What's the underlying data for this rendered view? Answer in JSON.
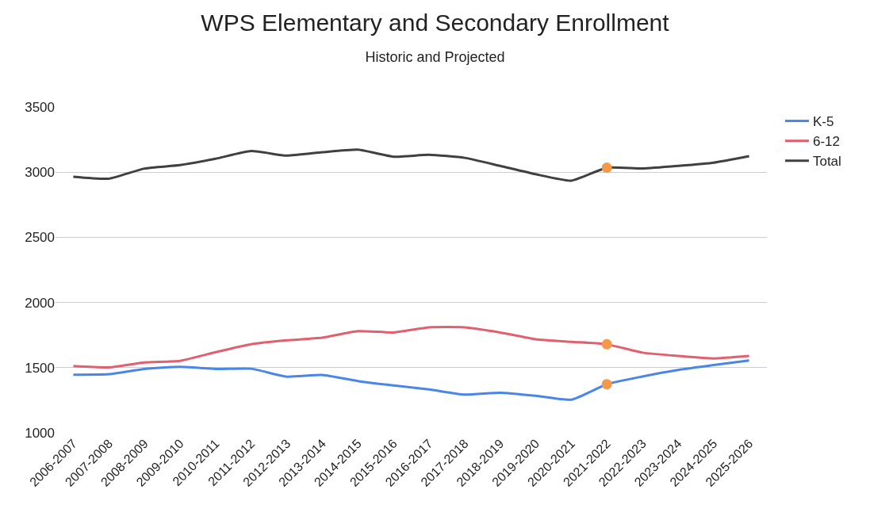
{
  "chart_data": {
    "type": "line",
    "title": "WPS Elementary and Secondary Enrollment",
    "subtitle": "Historic and Projected",
    "categories": [
      "2006-2007",
      "2007-2008",
      "2008-2009",
      "2009-2010",
      "2010-2011",
      "2011-2012",
      "2012-2013",
      "2013-2014",
      "2014-2015",
      "2015-2016",
      "2016-2017",
      "2017-2018",
      "2018-2019",
      "2019-2020",
      "2020-2021",
      "2021-2022",
      "2022-2023",
      "2023-2024",
      "2024-2025",
      "2025-2026"
    ],
    "series": [
      {
        "name": "K-5",
        "color": "#4a86e8",
        "values": [
          1446,
          1450,
          1490,
          1506,
          1490,
          1492,
          1431,
          1444,
          1397,
          1363,
          1333,
          1293,
          1307,
          1284,
          1254,
          1373,
          1432,
          1482,
          1520,
          1555
        ]
      },
      {
        "name": "6-12",
        "color": "#e06070",
        "values": [
          1512,
          1502,
          1540,
          1552,
          1619,
          1680,
          1710,
          1730,
          1780,
          1770,
          1809,
          1809,
          1770,
          1718,
          1698,
          1679,
          1615,
          1590,
          1571,
          1590
        ]
      },
      {
        "name": "Total",
        "color": "#404040",
        "values": [
          2965,
          2950,
          3028,
          3054,
          3103,
          3162,
          3127,
          3153,
          3173,
          3119,
          3133,
          3110,
          3048,
          2984,
          2935,
          3034,
          3028,
          3048,
          3073,
          3123
        ]
      },
      {
        "type": "scatter",
        "color": "#f4994a",
        "x": [
          "2021-2022",
          "2021-2022",
          "2021-2022"
        ],
        "values": [
          3034,
          1679,
          1373
        ]
      }
    ],
    "ylim": [
      1000,
      3500
    ],
    "yticks": [
      1000,
      1500,
      2000,
      2500,
      3000,
      3500
    ],
    "grid": "y",
    "legend": "top right",
    "line_style": "solid"
  }
}
